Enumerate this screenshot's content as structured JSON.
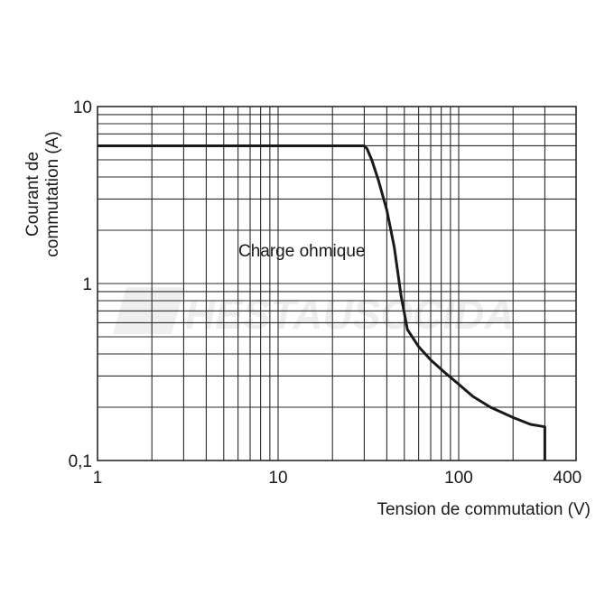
{
  "chart_data": {
    "type": "line",
    "title": "",
    "xlabel": "Tension de commutation (V)",
    "ylabel_lines": [
      "Courant de",
      "commutation (A)"
    ],
    "xscale": "log",
    "yscale": "log",
    "xlim": [
      1,
      400
    ],
    "ylim": [
      0.1,
      10
    ],
    "grid": true,
    "x_tick_labels": [
      {
        "value": 1,
        "label": "1"
      },
      {
        "value": 10,
        "label": "10"
      },
      {
        "value": 100,
        "label": "100"
      },
      {
        "value": 400,
        "label": "400"
      }
    ],
    "y_tick_labels": [
      {
        "value": 10,
        "label": "10"
      },
      {
        "value": 1,
        "label": "1"
      },
      {
        "value": 0.1,
        "label": "0,1"
      }
    ],
    "series": [
      {
        "annotation": "Charge ohmique",
        "x": [
          1,
          30,
          31,
          33,
          36,
          40,
          44,
          48,
          52,
          60,
          70,
          85,
          100,
          120,
          150,
          200,
          250,
          300,
          300
        ],
        "y": [
          6,
          6,
          5.8,
          5.0,
          3.8,
          2.6,
          1.6,
          0.85,
          0.55,
          0.44,
          0.37,
          0.31,
          0.27,
          0.23,
          0.2,
          0.175,
          0.16,
          0.155,
          0.1
        ]
      }
    ],
    "line_color": "#1a1a1a",
    "grid_color": "#2a2a2a"
  },
  "watermark": {
    "text": "HESTAUSOCIDA"
  }
}
